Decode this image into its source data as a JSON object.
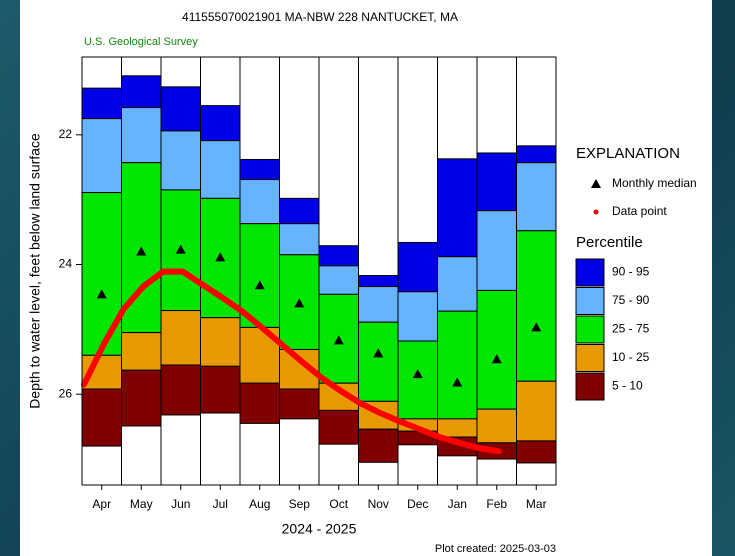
{
  "chart_data": {
    "type": "bar",
    "title": "411555070021901 MA-NBW  228 NANTUCKET, MA",
    "subtitle": "U.S. Geological Survey",
    "y_label": "Depth to water level, feet below land surface",
    "x_label": "2024 - 2025",
    "note": "Plot created: 2025-03-03",
    "categories": [
      "Apr",
      "May",
      "Jun",
      "Jul",
      "Aug",
      "Sep",
      "Oct",
      "Nov",
      "Dec",
      "Jan",
      "Feb",
      "Mar"
    ],
    "ylim": [
      20.8,
      27.4
    ],
    "y_inverted": true,
    "yticks": [
      22,
      24,
      26
    ],
    "bands": [
      {
        "name": "90 - 95",
        "color": "#0000e6"
      },
      {
        "name": "75 - 90",
        "color": "#66b3ff"
      },
      {
        "name": "25 - 75",
        "color": "#00e600"
      },
      {
        "name": "10 - 25",
        "color": "#e69900"
      },
      {
        "name": "5 - 10",
        "color": "#800000"
      }
    ],
    "band_edges": [
      [
        21.28,
        21.09,
        21.26,
        21.55,
        22.38,
        22.98,
        23.71,
        24.17,
        23.66,
        22.37,
        22.28,
        22.17
      ],
      [
        21.75,
        21.58,
        21.94,
        22.09,
        22.69,
        23.37,
        24.02,
        24.34,
        24.42,
        23.88,
        23.17,
        22.43
      ],
      [
        22.89,
        22.43,
        22.85,
        22.98,
        23.37,
        23.85,
        24.46,
        24.89,
        25.18,
        24.72,
        24.4,
        23.48
      ],
      [
        25.4,
        25.05,
        24.71,
        24.82,
        24.97,
        25.31,
        25.83,
        26.11,
        26.38,
        26.38,
        26.23,
        25.8
      ],
      [
        25.92,
        25.63,
        25.55,
        25.57,
        25.83,
        25.92,
        26.25,
        26.54,
        26.57,
        26.66,
        26.75,
        26.72
      ],
      [
        26.8,
        26.49,
        26.32,
        26.29,
        26.45,
        26.38,
        26.77,
        27.05,
        26.78,
        26.95,
        27.0,
        27.06
      ]
    ],
    "median": {
      "name": "Monthly median",
      "color": "#000000",
      "values": [
        24.46,
        23.8,
        23.77,
        23.89,
        24.32,
        24.6,
        25.17,
        25.37,
        25.69,
        25.82,
        25.46,
        24.97
      ]
    },
    "data_points": {
      "name": "Data point",
      "color": "#ff0000",
      "values": [
        25.85,
        25.23,
        24.69,
        24.34,
        24.11,
        24.11,
        24.31,
        24.51,
        24.72,
        24.97,
        25.23,
        25.49,
        25.74,
        25.95,
        26.14,
        26.29,
        26.42,
        26.54,
        26.66,
        26.75,
        26.83,
        26.88
      ]
    },
    "legend_title": "EXPLANATION",
    "legend_subtitle": "Percentile"
  }
}
